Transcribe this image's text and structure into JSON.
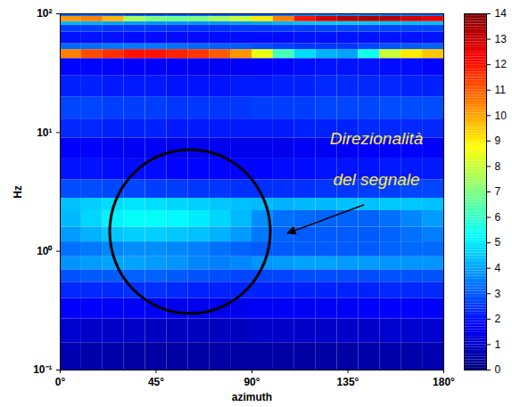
{
  "chart_data": {
    "type": "heatmap",
    "xlabel": "azimuth",
    "ylabel": "Hz",
    "xlim": [
      0,
      180
    ],
    "ylim": [
      0.1,
      100
    ],
    "log": "y",
    "grid": false,
    "xticks": [
      {
        "value": 0,
        "label": "0°"
      },
      {
        "value": 45,
        "label": "45°"
      },
      {
        "value": 90,
        "label": "90°"
      },
      {
        "value": 135,
        "label": "135°"
      },
      {
        "value": 180,
        "label": "180°"
      }
    ],
    "yticks": [
      {
        "value": 0.1,
        "label": "10⁻¹"
      },
      {
        "value": 1,
        "label": "10⁰"
      },
      {
        "value": 10,
        "label": "10¹"
      },
      {
        "value": 100,
        "label": "10²"
      }
    ],
    "annotations": [
      {
        "text": "Direzionalità\ndel segnale"
      }
    ],
    "cells": {
      "x_edges": [
        0,
        10,
        20,
        30,
        40,
        50,
        60,
        70,
        80,
        90,
        100,
        110,
        120,
        130,
        140,
        150,
        160,
        170,
        180
      ],
      "y_edges": [
        0.1,
        0.17,
        0.27,
        0.4,
        0.55,
        0.7,
        0.9,
        1.2,
        1.6,
        2.2,
        2.8,
        4,
        6,
        9,
        13,
        20,
        30,
        42,
        50,
        56,
        70,
        80,
        86,
        95,
        100
      ],
      "values": [
        [
          0.7,
          0.6,
          0.6,
          0.5,
          0.5,
          0.5,
          0.5,
          0.5,
          0.5,
          0.5,
          0.5,
          0.5,
          0.5,
          0.5,
          0.6,
          0.6,
          0.6,
          0.7
        ],
        [
          1.1,
          1.0,
          1.0,
          1.0,
          0.9,
          0.9,
          0.9,
          0.9,
          0.9,
          1.0,
          1.0,
          1.0,
          1.0,
          1.0,
          1.0,
          1.1,
          1.1,
          1.1
        ],
        [
          1.7,
          1.7,
          1.6,
          1.6,
          1.6,
          1.5,
          1.5,
          1.5,
          1.5,
          1.6,
          1.6,
          1.6,
          1.6,
          1.6,
          1.7,
          1.7,
          1.7,
          1.7
        ],
        [
          2.3,
          2.3,
          2.3,
          2.4,
          2.4,
          2.3,
          2.2,
          2.2,
          2.2,
          2.2,
          2.2,
          2.2,
          2.2,
          2.2,
          2.2,
          2.3,
          2.3,
          2.3
        ],
        [
          2.9,
          3.0,
          3.0,
          3.1,
          3.1,
          3.0,
          2.9,
          2.8,
          2.7,
          2.7,
          2.7,
          2.8,
          2.8,
          2.8,
          2.8,
          2.9,
          2.9,
          2.9
        ],
        [
          3.8,
          3.9,
          4.0,
          4.0,
          3.9,
          3.8,
          3.6,
          3.5,
          3.6,
          3.8,
          3.9,
          4.0,
          4.0,
          3.9,
          3.9,
          3.8,
          3.8,
          3.8
        ],
        [
          3.3,
          3.4,
          3.6,
          3.7,
          3.7,
          3.6,
          3.5,
          3.3,
          3.1,
          3.0,
          3.0,
          3.0,
          3.0,
          3.0,
          3.0,
          3.1,
          3.2,
          3.2
        ],
        [
          3.9,
          4.2,
          4.5,
          4.6,
          4.6,
          4.5,
          4.4,
          4.2,
          3.9,
          3.4,
          3.1,
          3.0,
          3.0,
          3.0,
          3.0,
          3.1,
          3.3,
          3.5
        ],
        [
          4.3,
          4.7,
          5.1,
          5.3,
          5.3,
          5.2,
          5.0,
          4.7,
          4.3,
          3.7,
          3.3,
          3.2,
          3.1,
          3.1,
          3.1,
          3.3,
          3.6,
          3.9
        ],
        [
          4.4,
          4.6,
          4.8,
          4.9,
          4.8,
          4.7,
          4.6,
          4.5,
          4.4,
          4.3,
          4.2,
          4.3,
          4.3,
          4.4,
          4.4,
          4.5,
          4.5,
          4.4
        ],
        [
          2.8,
          2.8,
          2.7,
          2.7,
          2.6,
          2.6,
          2.5,
          2.5,
          2.4,
          2.4,
          2.4,
          2.4,
          2.5,
          2.5,
          2.6,
          2.6,
          2.7,
          2.7
        ],
        [
          2.0,
          2.0,
          1.9,
          1.9,
          1.9,
          1.8,
          1.8,
          1.8,
          1.8,
          1.8,
          1.9,
          1.9,
          2.0,
          2.0,
          2.0,
          2.1,
          2.1,
          2.1
        ],
        [
          1.7,
          1.7,
          1.6,
          1.6,
          1.6,
          1.5,
          1.5,
          1.5,
          1.5,
          1.5,
          1.5,
          1.6,
          1.6,
          1.6,
          1.7,
          1.7,
          1.7,
          1.7
        ],
        [
          2.3,
          2.3,
          2.2,
          2.2,
          2.2,
          2.1,
          2.1,
          2.1,
          2.1,
          2.1,
          2.1,
          2.2,
          2.2,
          2.2,
          2.3,
          2.3,
          2.3,
          2.3
        ],
        [
          2.7,
          2.7,
          2.6,
          2.6,
          2.6,
          2.5,
          2.5,
          2.5,
          2.5,
          2.6,
          2.6,
          2.6,
          2.7,
          2.7,
          2.7,
          2.8,
          2.8,
          2.8
        ],
        [
          2.2,
          2.2,
          2.1,
          2.1,
          2.1,
          2.0,
          2.0,
          2.0,
          2.1,
          2.1,
          2.2,
          2.2,
          2.3,
          2.3,
          2.3,
          2.3,
          2.2,
          2.2
        ],
        [
          1.8,
          1.8,
          1.8,
          1.7,
          1.7,
          1.7,
          1.6,
          1.6,
          1.6,
          1.7,
          1.8,
          1.9,
          2.0,
          2.0,
          2.0,
          1.9,
          1.9,
          1.8
        ],
        [
          10.5,
          11.2,
          11.6,
          12.0,
          12.0,
          11.8,
          11.5,
          11.0,
          10.2,
          8.5,
          6.2,
          4.8,
          4.2,
          4.0,
          5.5,
          8.0,
          9.0,
          9.5
        ],
        [
          3.2,
          3.3,
          3.4,
          3.4,
          3.4,
          3.3,
          3.2,
          3.1,
          3.0,
          2.8,
          2.6,
          2.5,
          2.5,
          2.5,
          2.7,
          2.9,
          3.0,
          3.1
        ],
        [
          2.0,
          2.0,
          2.0,
          1.9,
          1.9,
          1.9,
          1.9,
          1.9,
          1.9,
          1.9,
          1.9,
          2.0,
          2.0,
          2.0,
          2.0,
          2.0,
          2.0,
          2.0
        ],
        [
          2.6,
          2.6,
          2.5,
          2.5,
          2.5,
          2.4,
          2.4,
          2.4,
          2.5,
          2.5,
          2.6,
          2.6,
          2.7,
          2.7,
          2.7,
          2.7,
          2.7,
          2.7
        ],
        [
          4.2,
          4.1,
          4.0,
          3.9,
          3.8,
          3.8,
          3.8,
          3.8,
          3.9,
          4.0,
          4.2,
          4.4,
          4.5,
          4.5,
          4.5,
          4.4,
          4.3,
          4.3
        ],
        [
          10.2,
          10.5,
          9.8,
          7.5,
          7.0,
          6.8,
          7.0,
          7.5,
          8.0,
          9.0,
          10.5,
          12.0,
          12.8,
          13.2,
          13.3,
          13.2,
          12.8,
          12.5
        ],
        [
          3.2,
          3.2,
          3.1,
          3.0,
          3.0,
          3.0,
          3.0,
          3.0,
          3.1,
          3.2,
          3.3,
          3.4,
          3.5,
          3.5,
          3.5,
          3.4,
          3.4,
          3.3
        ]
      ]
    },
    "colorbar": {
      "range": [
        0,
        14
      ],
      "ticks": [
        0,
        1,
        2,
        3,
        4,
        5,
        6,
        7,
        8,
        9,
        10,
        11,
        12,
        13,
        14
      ]
    }
  }
}
